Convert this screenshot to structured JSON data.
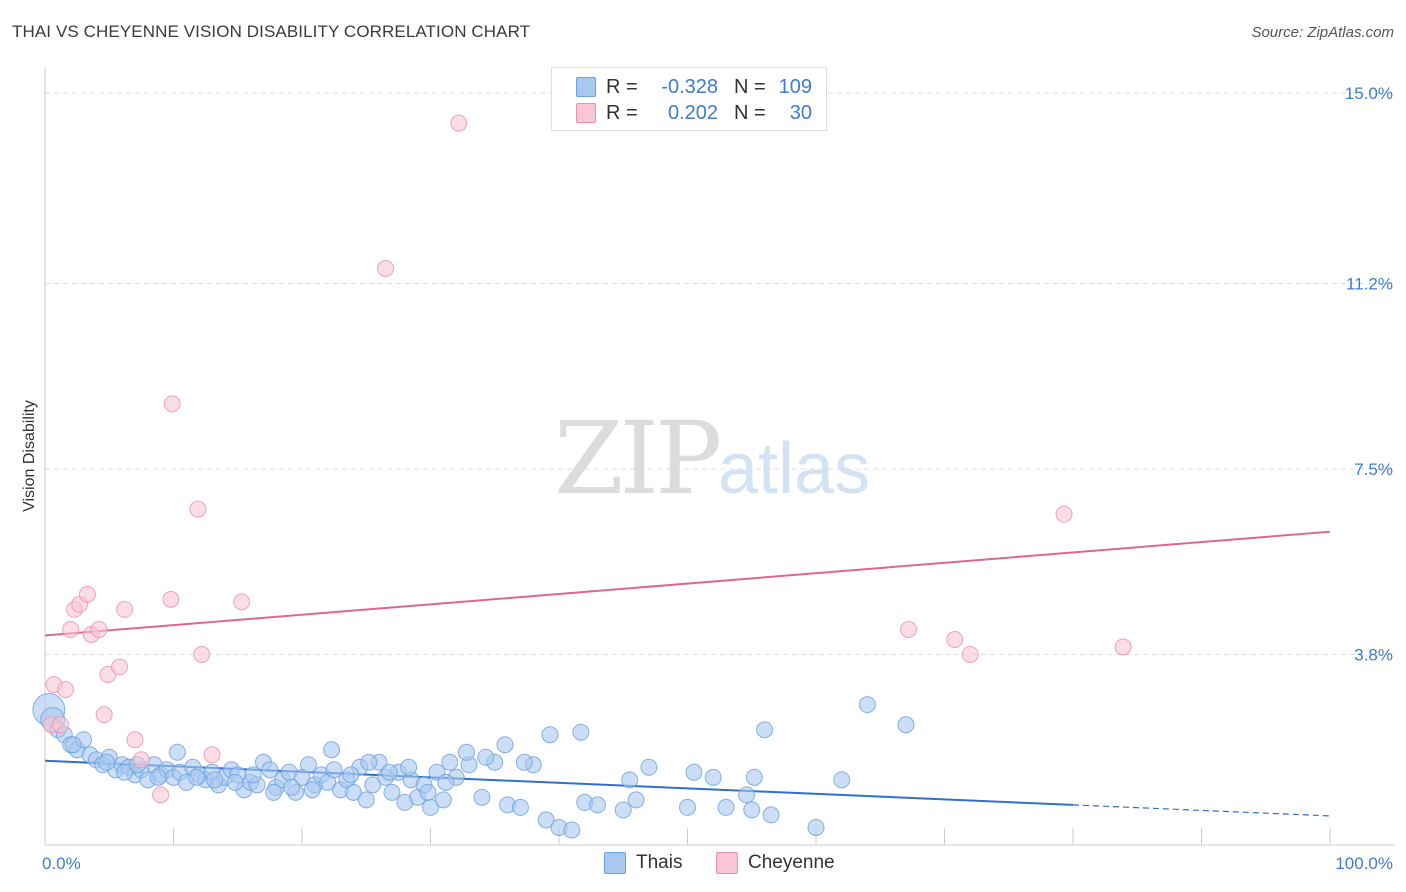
{
  "title": "THAI VS CHEYENNE VISION DISABILITY CORRELATION CHART",
  "source": "Source: ZipAtlas.com",
  "watermark": {
    "zip": "ZIP",
    "atlas": "atlas"
  },
  "legend": {
    "rows": [
      {
        "name": "Thais",
        "r_label": "R =",
        "r_value": "-0.328",
        "n_label": "N =",
        "n_value": "109",
        "color": "#a9c8f0",
        "border": "#6a9fe0"
      },
      {
        "name": "Cheyenne",
        "r_label": "R =",
        "r_value": "0.202",
        "n_label": "N =",
        "n_value": "30",
        "color": "#f8c6d4",
        "border": "#ee8fab"
      }
    ]
  },
  "bottom_legend": {
    "thais": "Thais",
    "cheyenne": "Cheyenne"
  },
  "colors": {
    "blue_fill": "#a9c8f0",
    "blue_stroke": "#6a9fe0",
    "blue_line": "#2e6fd0",
    "pink_fill": "#f8c6d4",
    "pink_stroke": "#ee8fab",
    "pink_line": "#e06690",
    "tick_text": "#3d7bd4",
    "grid": "#dddddd"
  },
  "chart_data": {
    "type": "scatter",
    "title": "THAI VS CHEYENNE VISION DISABILITY CORRELATION CHART",
    "xlabel": "",
    "ylabel": "Vision Disability",
    "xlim": [
      0,
      100
    ],
    "ylim": [
      0,
      15.4
    ],
    "y_ticks": [
      {
        "value": 3.8,
        "label": "3.8%"
      },
      {
        "value": 7.5,
        "label": "7.5%"
      },
      {
        "value": 11.2,
        "label": "11.2%"
      },
      {
        "value": 15.0,
        "label": "15.0%"
      }
    ],
    "x_ticks": [
      {
        "value": 0,
        "label": "0.0%"
      },
      {
        "value": 100,
        "label": "100.0%"
      }
    ],
    "grid": true,
    "series": [
      {
        "name": "Thais",
        "r": -0.328,
        "n": 109,
        "trend": {
          "x0": 0,
          "y0": 1.68,
          "x1": 80,
          "y1": 0.8,
          "dashed_to_x": 100,
          "dashed_to_y": 0.58
        },
        "points": [
          [
            0.3,
            2.7,
            3
          ],
          [
            0.6,
            2.5,
            2
          ],
          [
            1.0,
            2.3,
            1
          ],
          [
            1.5,
            2.2,
            1
          ],
          [
            2,
            2.0,
            1
          ],
          [
            2.5,
            1.9,
            1
          ],
          [
            3,
            2.1,
            1
          ],
          [
            3.5,
            1.8,
            1
          ],
          [
            4,
            1.7,
            1
          ],
          [
            4.5,
            1.6,
            1
          ],
          [
            5,
            1.75,
            1
          ],
          [
            5.5,
            1.5,
            1
          ],
          [
            6,
            1.6,
            1
          ],
          [
            6.5,
            1.55,
            1
          ],
          [
            7,
            1.4,
            1
          ],
          [
            7.5,
            1.5,
            1
          ],
          [
            8,
            1.3,
            1
          ],
          [
            8.5,
            1.6,
            1
          ],
          [
            9,
            1.4,
            1
          ],
          [
            9.5,
            1.5,
            1
          ],
          [
            10,
            1.35,
            1
          ],
          [
            10.5,
            1.45,
            1
          ],
          [
            11,
            1.25,
            1
          ],
          [
            11.5,
            1.55,
            1
          ],
          [
            12,
            1.4,
            1
          ],
          [
            12.5,
            1.3,
            1
          ],
          [
            13,
            1.45,
            1
          ],
          [
            13.5,
            1.2,
            1
          ],
          [
            14,
            1.35,
            1
          ],
          [
            14.5,
            1.5,
            1
          ],
          [
            15,
            1.4,
            1
          ],
          [
            15.5,
            1.1,
            1
          ],
          [
            16,
            1.25,
            1
          ],
          [
            16.5,
            1.2,
            1
          ],
          [
            17,
            1.65,
            1
          ],
          [
            17.5,
            1.5,
            1
          ],
          [
            18,
            1.15,
            1
          ],
          [
            18.5,
            1.3,
            1
          ],
          [
            19,
            1.45,
            1
          ],
          [
            19.5,
            1.05,
            1
          ],
          [
            20,
            1.35,
            1
          ],
          [
            20.5,
            1.6,
            1
          ],
          [
            21,
            1.2,
            1
          ],
          [
            21.5,
            1.4,
            1
          ],
          [
            22,
            1.25,
            1
          ],
          [
            22.5,
            1.5,
            1
          ],
          [
            23,
            1.1,
            1
          ],
          [
            23.5,
            1.3,
            1
          ],
          [
            24,
            1.05,
            1
          ],
          [
            24.5,
            1.55,
            1
          ],
          [
            25,
            0.9,
            1
          ],
          [
            25.5,
            1.2,
            1
          ],
          [
            26,
            1.65,
            1
          ],
          [
            26.5,
            1.35,
            1
          ],
          [
            27,
            1.05,
            1
          ],
          [
            27.5,
            1.45,
            1
          ],
          [
            28,
            0.85,
            1
          ],
          [
            28.5,
            1.3,
            1
          ],
          [
            29,
            0.95,
            1
          ],
          [
            29.5,
            1.2,
            1
          ],
          [
            30,
            0.75,
            1
          ],
          [
            30.5,
            1.45,
            1
          ],
          [
            31,
            0.9,
            1
          ],
          [
            31.5,
            1.65,
            1
          ],
          [
            32,
            1.35,
            1
          ],
          [
            33,
            1.6,
            1
          ],
          [
            34,
            0.95,
            1
          ],
          [
            35,
            1.65,
            1
          ],
          [
            36,
            0.8,
            1
          ],
          [
            37,
            0.75,
            1
          ],
          [
            38,
            1.6,
            1
          ],
          [
            39,
            0.5,
            1
          ],
          [
            40,
            0.35,
            1
          ],
          [
            41,
            0.3,
            1
          ],
          [
            42,
            0.85,
            1
          ],
          [
            43,
            0.8,
            1
          ],
          [
            45,
            0.7,
            1
          ],
          [
            46,
            0.9,
            1
          ],
          [
            47,
            1.55,
            1
          ],
          [
            50,
            0.75,
            1
          ],
          [
            52,
            1.35,
            1
          ],
          [
            55,
            0.7,
            1
          ],
          [
            56,
            2.3,
            1
          ],
          [
            60,
            0.35,
            1
          ],
          [
            62,
            1.3,
            1
          ],
          [
            64,
            2.8,
            1
          ],
          [
            67,
            2.4,
            1
          ],
          [
            2.2,
            2.0,
            1
          ],
          [
            4.8,
            1.65,
            1
          ],
          [
            6.2,
            1.45,
            1
          ],
          [
            7.2,
            1.6,
            1
          ],
          [
            8.8,
            1.35,
            1
          ],
          [
            10.3,
            1.85,
            1
          ],
          [
            11.8,
            1.35,
            1
          ],
          [
            13.2,
            1.3,
            1
          ],
          [
            14.8,
            1.25,
            1
          ],
          [
            16.2,
            1.4,
            1
          ],
          [
            17.8,
            1.05,
            1
          ],
          [
            19.2,
            1.15,
            1
          ],
          [
            20.8,
            1.1,
            1
          ],
          [
            22.3,
            1.9,
            1
          ],
          [
            23.8,
            1.4,
            1
          ],
          [
            25.2,
            1.65,
            1
          ],
          [
            26.8,
            1.45,
            1
          ],
          [
            28.3,
            1.55,
            1
          ],
          [
            29.8,
            1.05,
            1
          ],
          [
            31.2,
            1.25,
            1
          ],
          [
            32.8,
            1.85,
            1
          ],
          [
            34.3,
            1.75,
            1
          ],
          [
            35.8,
            2.0,
            1
          ],
          [
            37.3,
            1.65,
            1
          ],
          [
            39.3,
            2.2,
            1
          ],
          [
            41.7,
            2.25,
            1
          ],
          [
            45.5,
            1.3,
            1
          ],
          [
            50.5,
            1.45,
            1
          ],
          [
            53,
            0.75,
            1
          ],
          [
            54.6,
            1.0,
            1
          ],
          [
            55.2,
            1.35,
            1
          ],
          [
            56.5,
            0.6,
            1
          ]
        ]
      },
      {
        "name": "Cheyenne",
        "r": 0.202,
        "n": 30,
        "trend": {
          "x0": 0,
          "y0": 4.18,
          "x1": 100,
          "y1": 6.25
        },
        "points": [
          [
            0.5,
            2.4,
            1
          ],
          [
            0.7,
            3.2,
            1
          ],
          [
            1.2,
            2.4,
            1
          ],
          [
            1.6,
            3.1,
            1
          ],
          [
            2.0,
            4.3,
            1
          ],
          [
            2.3,
            4.7,
            1
          ],
          [
            2.7,
            4.8,
            1
          ],
          [
            3.3,
            5.0,
            1
          ],
          [
            3.6,
            4.2,
            1
          ],
          [
            4.2,
            4.3,
            1
          ],
          [
            4.6,
            2.6,
            1
          ],
          [
            4.9,
            3.4,
            1
          ],
          [
            5.8,
            3.55,
            1
          ],
          [
            6.2,
            4.7,
            1
          ],
          [
            7.0,
            2.1,
            1
          ],
          [
            7.5,
            1.7,
            1
          ],
          [
            9.0,
            1.0,
            1
          ],
          [
            9.8,
            4.9,
            1
          ],
          [
            9.9,
            8.8,
            1
          ],
          [
            11.9,
            6.7,
            1
          ],
          [
            12.2,
            3.8,
            1
          ],
          [
            13.0,
            1.8,
            1
          ],
          [
            15.3,
            4.85,
            1
          ],
          [
            26.5,
            11.5,
            1
          ],
          [
            32.2,
            14.4,
            1
          ],
          [
            67.2,
            4.3,
            1
          ],
          [
            70.8,
            4.1,
            1
          ],
          [
            72.0,
            3.8,
            1
          ],
          [
            79.3,
            6.6,
            1
          ],
          [
            83.9,
            3.95,
            1
          ]
        ]
      }
    ]
  }
}
